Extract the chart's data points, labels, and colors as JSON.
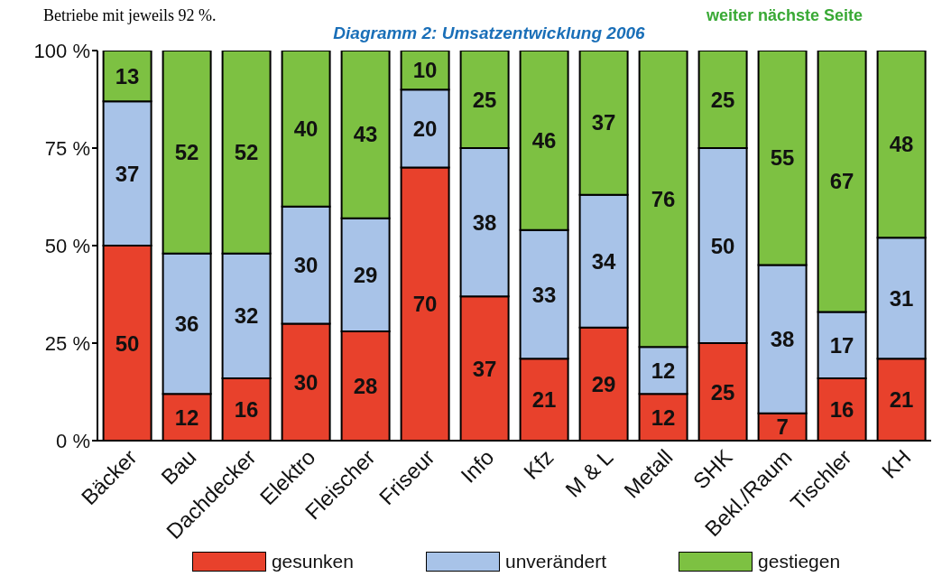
{
  "chart_data": {
    "type": "bar",
    "title": "Diagramm 2: Umsatzentwicklung 2006",
    "annotations": [
      "Betriebe mit jeweils 92 %.",
      "weiter nächste Seite"
    ],
    "categories": [
      "Bäcker",
      "Bau",
      "Dachdecker",
      "Elektro",
      "Fleischer",
      "Friseur",
      "Info",
      "Kfz",
      "M & L",
      "Metall",
      "SHK",
      "Bekl./Raum",
      "Tischler",
      "KH"
    ],
    "series": [
      {
        "name": "gesunken",
        "color": "#e8412c",
        "values": [
          50,
          12,
          16,
          30,
          28,
          70,
          37,
          21,
          29,
          12,
          25,
          7,
          16,
          21
        ]
      },
      {
        "name": "unverändert",
        "color": "#a8c3e8",
        "values": [
          37,
          36,
          32,
          30,
          29,
          20,
          38,
          33,
          34,
          12,
          50,
          38,
          17,
          31
        ]
      },
      {
        "name": "gestiegen",
        "color": "#7dc142",
        "values": [
          13,
          52,
          52,
          40,
          43,
          10,
          25,
          46,
          37,
          76,
          25,
          55,
          67,
          48
        ]
      }
    ],
    "stacked": true,
    "data_labels": true,
    "ylim": [
      0,
      100
    ],
    "yticks": [
      {
        "value": 0,
        "label": "0 %"
      },
      {
        "value": 25,
        "label": "25 %"
      },
      {
        "value": 50,
        "label": "50 %"
      },
      {
        "value": 75,
        "label": "75 %"
      },
      {
        "value": 100,
        "label": "100 %"
      }
    ],
    "grid": false,
    "legend": "bottom"
  }
}
